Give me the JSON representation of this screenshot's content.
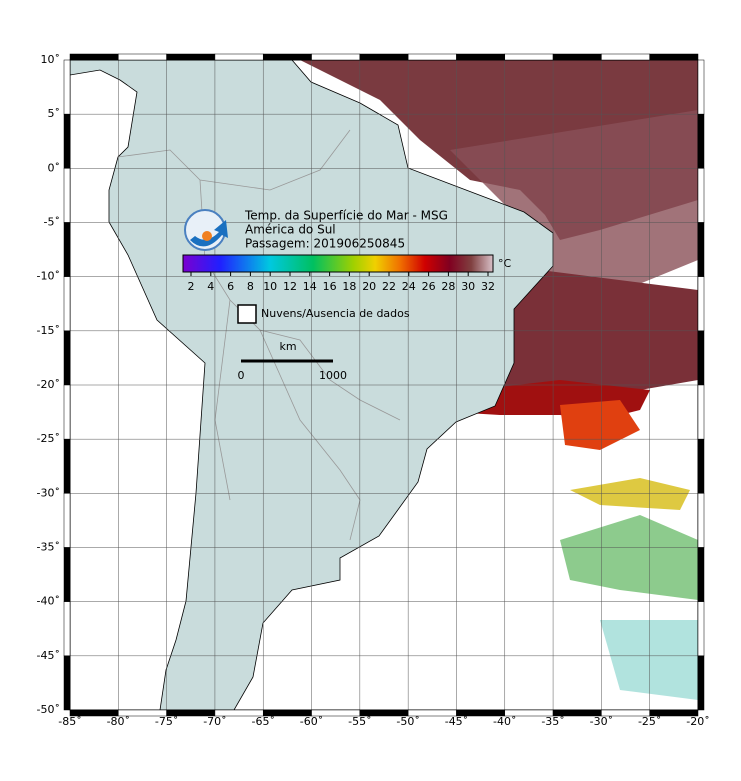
{
  "header": {
    "title": "Temp. da Superfície do Mar - MSG",
    "region": "América do Sul",
    "pass": "Passagem: 201906250845"
  },
  "colorbar": {
    "unit": "°C",
    "ticks": [
      2,
      4,
      6,
      8,
      10,
      12,
      14,
      16,
      18,
      20,
      22,
      24,
      26,
      28,
      30,
      32
    ]
  },
  "legend": {
    "clouds": "Nuvens/Ausencia de dados"
  },
  "scale": {
    "unit": "km",
    "start": "0",
    "end": "1000"
  },
  "map": {
    "lon_ticks": [
      {
        "value": -85,
        "label": "-85˚"
      },
      {
        "value": -80,
        "label": "-80˚"
      },
      {
        "value": -75,
        "label": "-75˚"
      },
      {
        "value": -70,
        "label": "-70˚"
      },
      {
        "value": -65,
        "label": "-65˚"
      },
      {
        "value": -60,
        "label": "-60˚"
      },
      {
        "value": -55,
        "label": "-55˚"
      },
      {
        "value": -50,
        "label": "-50˚"
      },
      {
        "value": -45,
        "label": "-45˚"
      },
      {
        "value": -40,
        "label": "-40˚"
      },
      {
        "value": -35,
        "label": "-35˚"
      },
      {
        "value": -30,
        "label": "-30˚"
      },
      {
        "value": -25,
        "label": "-25˚"
      },
      {
        "value": -20,
        "label": "-20˚"
      }
    ],
    "lat_ticks": [
      {
        "value": 10,
        "label": "10˚"
      },
      {
        "value": 5,
        "label": "5˚"
      },
      {
        "value": 0,
        "label": "0˚"
      },
      {
        "value": -5,
        "label": "-5˚"
      },
      {
        "value": -10,
        "label": "-10˚"
      },
      {
        "value": -15,
        "label": "-15˚"
      },
      {
        "value": -20,
        "label": "-20˚"
      },
      {
        "value": -25,
        "label": "-25˚"
      },
      {
        "value": -30,
        "label": "-30˚"
      },
      {
        "value": -35,
        "label": "-35˚"
      },
      {
        "value": -40,
        "label": "-40˚"
      },
      {
        "value": -45,
        "label": "-45˚"
      },
      {
        "value": -50,
        "label": "-50˚"
      }
    ]
  }
}
